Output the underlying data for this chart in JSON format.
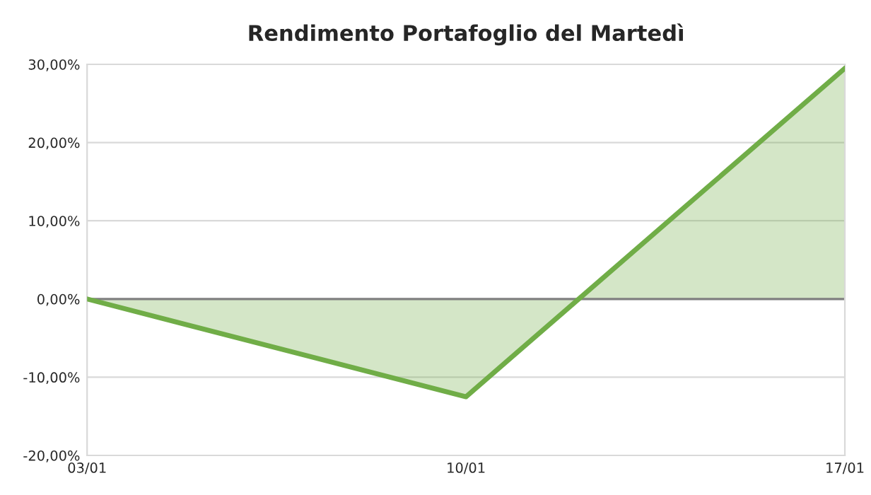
{
  "chart_data": {
    "type": "area",
    "title": "Rendimento Portafoglio del Martedì",
    "categories": [
      "03/01",
      "10/01",
      "17/01"
    ],
    "series": [
      {
        "color": "#70ad47",
        "values": [
          0,
          -12.5,
          29.5
        ]
      }
    ],
    "ylim": [
      -20,
      30
    ],
    "yticks": [
      {
        "value": -20,
        "label": "-20,00%"
      },
      {
        "value": -10,
        "label": "-10,00%"
      },
      {
        "value": 0,
        "label": "0,00%"
      },
      {
        "value": 10,
        "label": "10,00%"
      },
      {
        "value": 20,
        "label": "20,00%"
      },
      {
        "value": 30,
        "label": "30,00%"
      }
    ],
    "grid": "y",
    "legend": false,
    "ref_lines": [
      {
        "axis": "y",
        "value": 0,
        "color": "#808080"
      }
    ]
  }
}
